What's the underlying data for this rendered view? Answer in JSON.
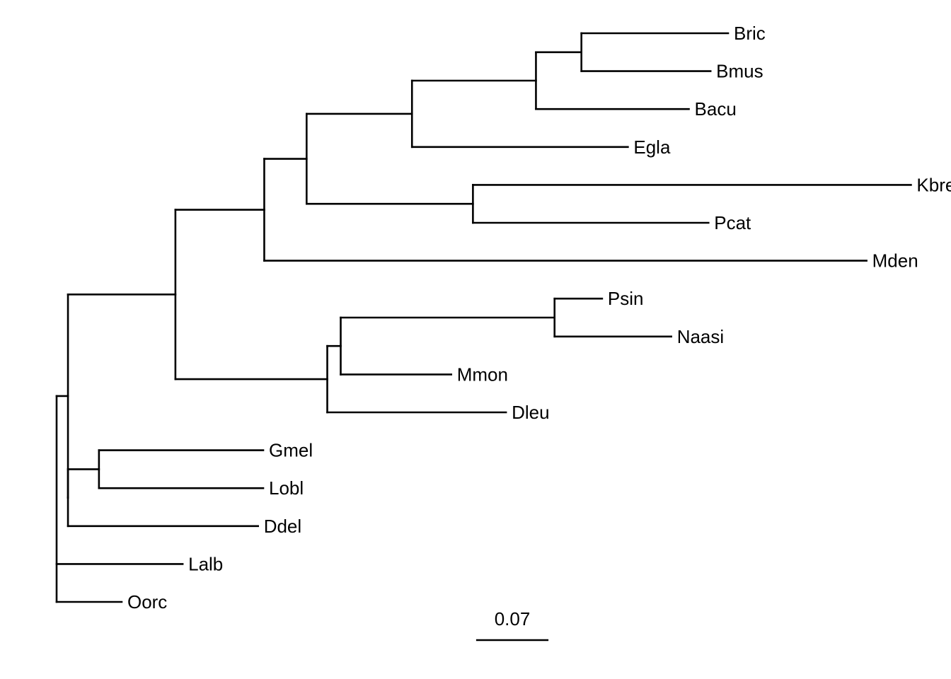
{
  "tree": {
    "newick": "((((((((Bric:0.142,Bmus:0.125):0.044,Bacu:0.148):0.12,Egla:0.209):0.102,(Kbre:0.424,Pcat:0.228):0.161):0.041,Mden:0.583):0.086,(((Psin:0.046,Naasi:0.113):0.207,Mmon:0.107):0.013,Dleu:0.173):0.147):0.104,((Gmel:0.159,Lobl:0.159):0.03,Ddel:0.184):0.0):0.011,Lalb:0.122,Oorc:0.063);",
    "tips": [
      "Bric",
      "Bmus",
      "Bacu",
      "Egla",
      "Kbre",
      "Pcat",
      "Mden",
      "Psin",
      "Naasi",
      "Mmon",
      "Dleu",
      "Gmel",
      "Lobl",
      "Ddel",
      "Lalb",
      "Oorc"
    ],
    "scale_bar": {
      "label": "0.07",
      "length": 0.07
    },
    "colors": {
      "branch": "#000000",
      "text": "#000000",
      "background": "#ffffff"
    }
  }
}
